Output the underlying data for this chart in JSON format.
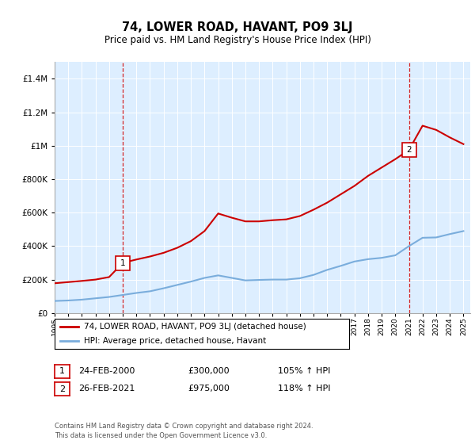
{
  "title": "74, LOWER ROAD, HAVANT, PO9 3LJ",
  "subtitle": "Price paid vs. HM Land Registry's House Price Index (HPI)",
  "legend_red": "74, LOWER ROAD, HAVANT, PO9 3LJ (detached house)",
  "legend_blue": "HPI: Average price, detached house, Havant",
  "footnote": "Contains HM Land Registry data © Crown copyright and database right 2024.\nThis data is licensed under the Open Government Licence v3.0.",
  "transaction1_label": "1",
  "transaction1_date": "24-FEB-2000",
  "transaction1_price": "£300,000",
  "transaction1_hpi": "105% ↑ HPI",
  "transaction2_label": "2",
  "transaction2_date": "26-FEB-2021",
  "transaction2_price": "£975,000",
  "transaction2_hpi": "118% ↑ HPI",
  "red_color": "#cc0000",
  "blue_color": "#7aaddc",
  "vline_color": "#cc0000",
  "bg_color": "#ddeeff",
  "ylim": [
    0,
    1500000
  ],
  "yticks": [
    0,
    200000,
    400000,
    600000,
    800000,
    1000000,
    1200000,
    1400000
  ],
  "hpi_years": [
    1995,
    1996,
    1997,
    1998,
    1999,
    2000,
    2001,
    2002,
    2003,
    2004,
    2005,
    2006,
    2007,
    2008,
    2009,
    2010,
    2011,
    2012,
    2013,
    2014,
    2015,
    2016,
    2017,
    2018,
    2019,
    2020,
    2021,
    2022,
    2023,
    2024,
    2025
  ],
  "hpi_values": [
    72000,
    75000,
    80000,
    88000,
    96000,
    108000,
    120000,
    130000,
    148000,
    168000,
    188000,
    210000,
    225000,
    210000,
    195000,
    198000,
    200000,
    200000,
    208000,
    228000,
    258000,
    282000,
    308000,
    322000,
    330000,
    345000,
    400000,
    450000,
    452000,
    472000,
    490000
  ],
  "red_years": [
    1995,
    1996,
    1997,
    1998,
    1999,
    2000,
    2001,
    2002,
    2003,
    2004,
    2005,
    2006,
    2007,
    2008,
    2009,
    2010,
    2011,
    2012,
    2013,
    2014,
    2015,
    2016,
    2017,
    2018,
    2019,
    2020,
    2021,
    2022,
    2023,
    2024,
    2025
  ],
  "red_values": [
    178000,
    185000,
    192000,
    200000,
    215000,
    300000,
    320000,
    338000,
    360000,
    390000,
    430000,
    490000,
    595000,
    570000,
    548000,
    548000,
    555000,
    560000,
    580000,
    618000,
    660000,
    710000,
    760000,
    820000,
    870000,
    920000,
    975000,
    1120000,
    1095000,
    1050000,
    1010000
  ],
  "transaction1_x": 2000,
  "transaction2_x": 2021,
  "transaction1_y": 300000,
  "transaction2_y": 975000,
  "xmin": 1995,
  "xmax": 2025.5
}
